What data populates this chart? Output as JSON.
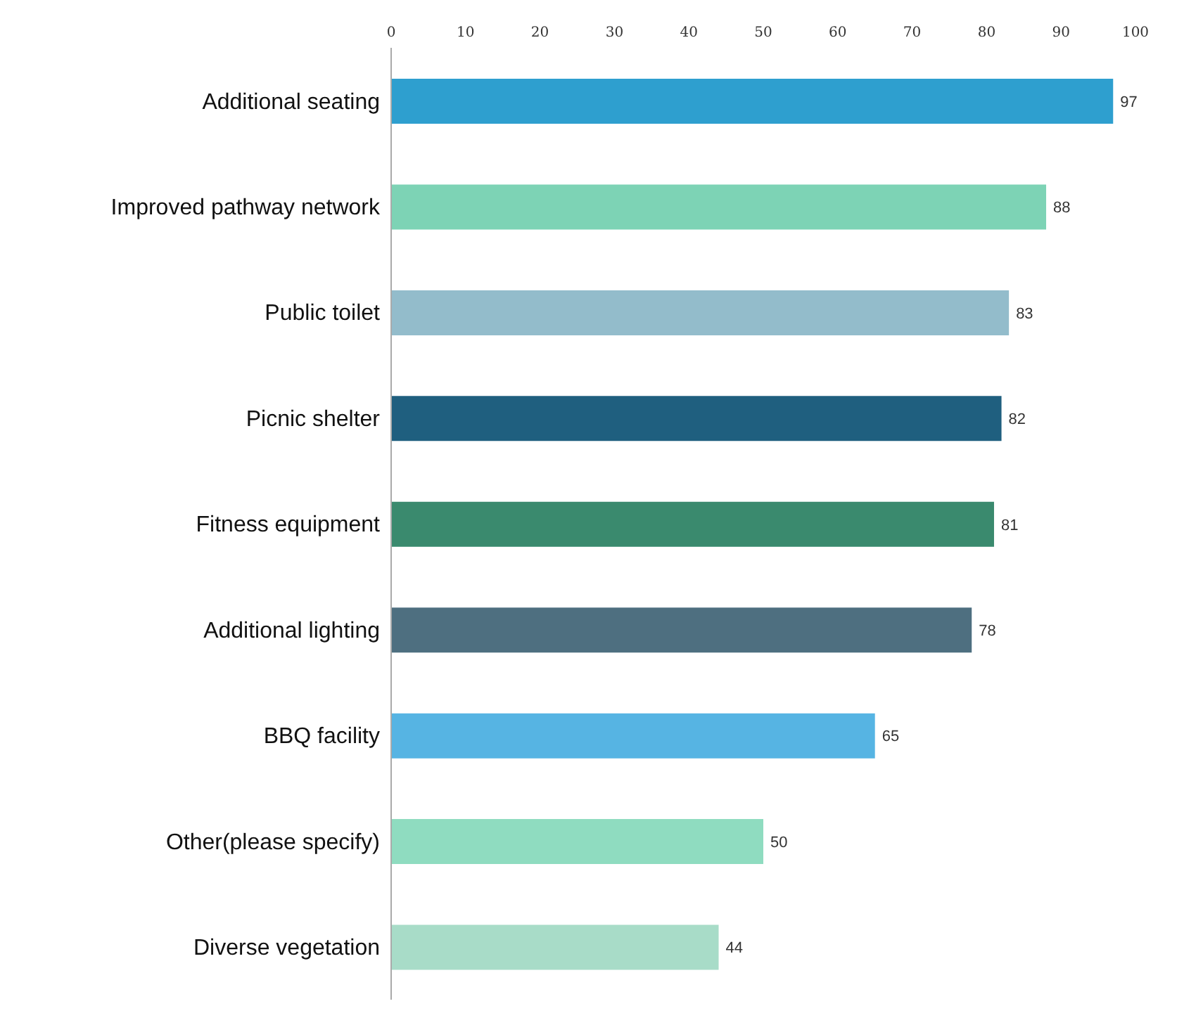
{
  "chart_data": {
    "type": "bar",
    "orientation": "horizontal",
    "categories": [
      "Additional seating",
      "Improved pathway network",
      "Public toilet",
      "Picnic shelter",
      "Fitness equipment",
      "Additional lighting",
      "BBQ facility",
      "Other(please specify)",
      "Diverse vegetation"
    ],
    "values": [
      97,
      88,
      83,
      82,
      81,
      78,
      65,
      50,
      44
    ],
    "colors": [
      "#2e9fcf",
      "#7dd3b5",
      "#93bccb",
      "#1f5f7f",
      "#3a8a6e",
      "#4e6f80",
      "#56b4e3",
      "#8fdcc0",
      "#a8dcc8"
    ],
    "xlim": [
      0,
      100
    ],
    "xticks": [
      0,
      10,
      20,
      30,
      40,
      50,
      60,
      70,
      80,
      90,
      100
    ],
    "data_labels": true
  }
}
